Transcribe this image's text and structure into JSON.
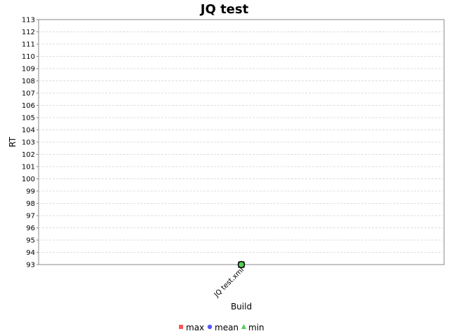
{
  "chart_data": {
    "type": "line",
    "title": "JQ test",
    "xlabel": "Build",
    "ylabel": "RT",
    "categories": [
      "JQ test.xml"
    ],
    "ylim": [
      93,
      113
    ],
    "yticks": [
      93,
      94,
      95,
      96,
      97,
      98,
      99,
      100,
      101,
      102,
      103,
      104,
      105,
      106,
      107,
      108,
      109,
      110,
      111,
      112,
      113
    ],
    "grid": true,
    "legend_position": "bottom",
    "series": [
      {
        "name": "max",
        "values": [
          93
        ],
        "color": "#ff5555",
        "marker": "square"
      },
      {
        "name": "mean",
        "values": [
          93
        ],
        "color": "#5555ff",
        "marker": "circle"
      },
      {
        "name": "min",
        "values": [
          93
        ],
        "color": "#55cc55",
        "marker": "triangle"
      }
    ]
  }
}
